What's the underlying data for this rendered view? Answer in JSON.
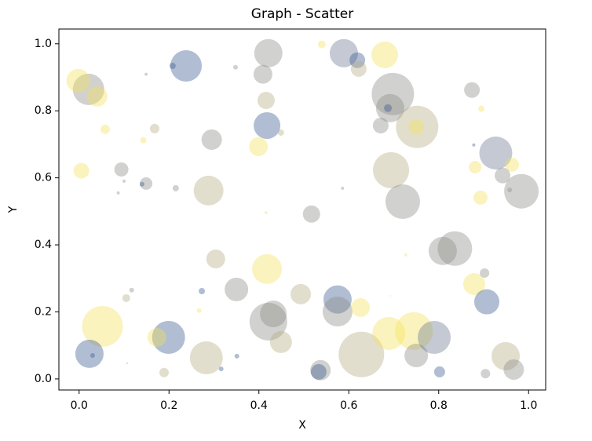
{
  "chart_data": {
    "type": "scatter",
    "title": "Graph - Scatter",
    "x_label": "X",
    "y_label": "Y",
    "xlim": [
      -0.045,
      1.038
    ],
    "ylim": [
      -0.033,
      1.044
    ],
    "xticks": [
      {
        "value": 0,
        "label": "0.0"
      },
      {
        "value": 0.2,
        "label": "0.2"
      },
      {
        "value": 0.4,
        "label": "0.4"
      },
      {
        "value": 0.6,
        "label": "0.6"
      },
      {
        "value": 0.8,
        "label": "0.8"
      },
      {
        "value": 1,
        "label": "1.0"
      }
    ],
    "yticks": [
      {
        "value": 0,
        "label": "0.0"
      },
      {
        "value": 0.2,
        "label": "0.2"
      },
      {
        "value": 0.4,
        "label": "0.4"
      },
      {
        "value": 0.6,
        "label": "0.6"
      },
      {
        "value": 0.8,
        "label": "0.8"
      },
      {
        "value": 1,
        "label": "1.0"
      }
    ],
    "opacity": 0.4,
    "x": [
      0.238,
      0.021,
      -0.002,
      0.04,
      0.208,
      0.149,
      0.348,
      0.421,
      0.409,
      0.54,
      0.589,
      0.619,
      0.622,
      0.68,
      0.698,
      0.692,
      0.687,
      0.671,
      0.752,
      0.75,
      0.874,
      0.895,
      0.878,
      0.927,
      0.881,
      0.963,
      0.942,
      0.984,
      0.958,
      0.893,
      0.694,
      0.72,
      0.418,
      0.416,
      0.399,
      0.449,
      0.295,
      0.288,
      0.517,
      0.416,
      0.586,
      0.005,
      0.094,
      0.058,
      0.168,
      0.143,
      0.149,
      0.14,
      0.215,
      0.1,
      0.087,
      0.304,
      0.35,
      0.273,
      0.418,
      0.493,
      0.421,
      0.432,
      0.449,
      0.575,
      0.575,
      0.626,
      0.052,
      0.199,
      0.173,
      0.023,
      0.03,
      0.105,
      0.117,
      0.283,
      0.189,
      0.267,
      0.316,
      0.351,
      0.537,
      0.533,
      0.628,
      0.689,
      0.745,
      0.75,
      0.79,
      0.802,
      0.809,
      0.836,
      0.879,
      0.902,
      0.907,
      0.949,
      0.967,
      0.904,
      0.692,
      0.727,
      0.107
    ],
    "y": [
      0.934,
      0.864,
      0.89,
      0.843,
      0.934,
      0.909,
      0.93,
      0.972,
      0.909,
      0.998,
      0.972,
      0.951,
      0.925,
      0.967,
      0.85,
      0.808,
      0.808,
      0.756,
      0.752,
      0.752,
      0.862,
      0.806,
      0.698,
      0.674,
      0.632,
      0.639,
      0.607,
      0.56,
      0.564,
      0.541,
      0.623,
      0.529,
      0.756,
      0.831,
      0.693,
      0.735,
      0.714,
      0.562,
      0.492,
      0.496,
      0.569,
      0.621,
      0.625,
      0.745,
      0.747,
      0.712,
      0.583,
      0.581,
      0.569,
      0.59,
      0.555,
      0.358,
      0.267,
      0.262,
      0.328,
      0.253,
      0.171,
      0.194,
      0.11,
      0.237,
      0.201,
      0.213,
      0.157,
      0.124,
      0.124,
      0.075,
      0.07,
      0.241,
      0.265,
      0.063,
      0.019,
      0.204,
      0.03,
      0.068,
      0.026,
      0.021,
      0.073,
      0.136,
      0.143,
      0.07,
      0.124,
      0.021,
      0.382,
      0.389,
      0.283,
      0.316,
      0.23,
      0.068,
      0.028,
      0.016,
      0.248,
      0.37,
      0.047
    ],
    "sizes": [
      400,
      400,
      225,
      169,
      16,
      4,
      9,
      324,
      144,
      25,
      324,
      100,
      100,
      289,
      729,
      324,
      25,
      100,
      729,
      100,
      100,
      16,
      4,
      441,
      64,
      81,
      100,
      484,
      9,
      81,
      529,
      484,
      289,
      121,
      144,
      16,
      169,
      361,
      121,
      4,
      4,
      100,
      81,
      36,
      36,
      16,
      64,
      9,
      16,
      4,
      4,
      144,
      225,
      16,
      361,
      169,
      576,
      289,
      196,
      324,
      361,
      144,
      676,
      441,
      144,
      324,
      9,
      25,
      9,
      441,
      36,
      9,
      9,
      9,
      169,
      100,
      841,
      441,
      576,
      225,
      441,
      49,
      324,
      484,
      196,
      36,
      256,
      324,
      169,
      36,
      1,
      4,
      1
    ],
    "colors": [
      "#3a5a8f",
      "#8c8b86",
      "#f5e25a",
      "#f5e25a",
      "#3a5a8f",
      "#8c8b86",
      "#8c8b86",
      "#8c8b86",
      "#8c8b86",
      "#f5e25a",
      "#6c7894",
      "#3a5a8f",
      "#b6ad85",
      "#f5e25a",
      "#8c8b86",
      "#8c8b86",
      "#3a5a8f",
      "#8c8b86",
      "#b6ad85",
      "#f5e25a",
      "#8c8b86",
      "#f5e25a",
      "#3a5a8f",
      "#6c7894",
      "#f5e25a",
      "#f5e25a",
      "#8c8b86",
      "#8c8b86",
      "#8c8b86",
      "#f5e25a",
      "#b6ad85",
      "#8c8b86",
      "#3a5a8f",
      "#b6ad85",
      "#f5e25a",
      "#b6ad85",
      "#8c8b86",
      "#b6ad85",
      "#8c8b86",
      "#f5e25a",
      "#8c8b86",
      "#f5e25a",
      "#8c8b86",
      "#f5e25a",
      "#b6ad85",
      "#f5e25a",
      "#8c8b86",
      "#3a5a8f",
      "#8c8b86",
      "#8c8b86",
      "#8c8b86",
      "#b6ad85",
      "#8c8b86",
      "#3a5a8f",
      "#f5e25a",
      "#b6ad85",
      "#8c8b86",
      "#8c8b86",
      "#b6ad85",
      "#3a5a8f",
      "#8c8b86",
      "#f5e25a",
      "#f5e25a",
      "#3a5a8f",
      "#f5e25a",
      "#3a5a8f",
      "#3a5a8f",
      "#b6ad85",
      "#8c8b86",
      "#b6ad85",
      "#b6ad85",
      "#f5e25a",
      "#3a5a8f",
      "#3a5a8f",
      "#8c8b86",
      "#3a5a8f",
      "#b6ad85",
      "#f5e25a",
      "#f5e25a",
      "#8c8b86",
      "#6c7894",
      "#3a5a8f",
      "#8c8b86",
      "#8c8b86",
      "#f5e25a",
      "#8c8b86",
      "#3a5a8f",
      "#b6ad85",
      "#8c8b86",
      "#8c8b86",
      "#f5e25a",
      "#f5e25a",
      "#8c8b86"
    ]
  }
}
